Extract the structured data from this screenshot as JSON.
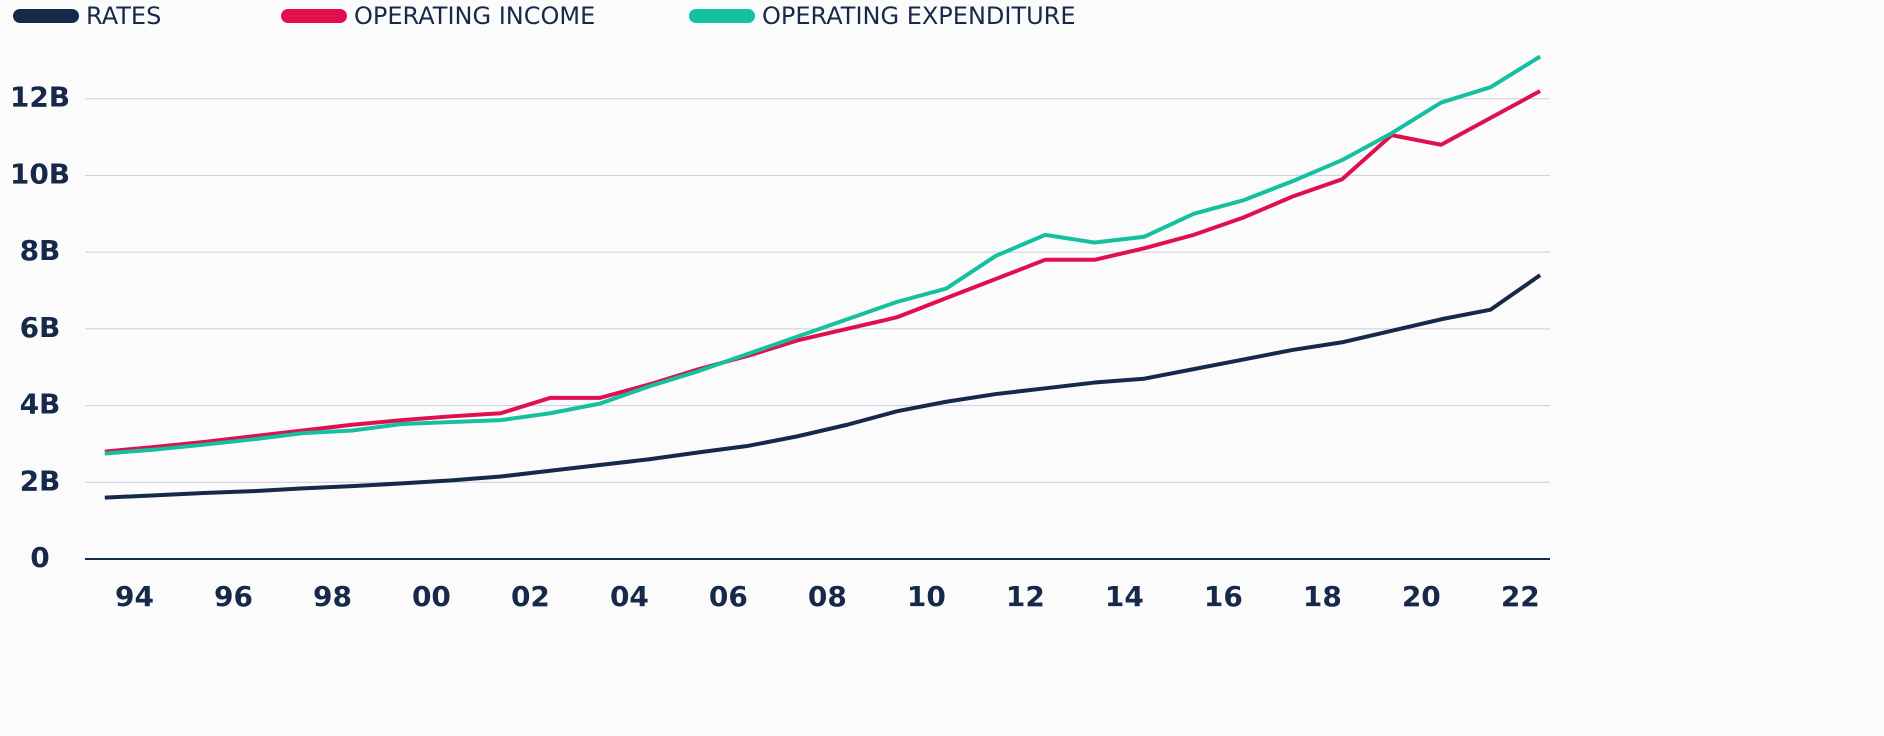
{
  "chart_data": {
    "type": "line",
    "x": [
      1993.4,
      1994.4,
      1995.4,
      1996.4,
      1997.4,
      1998.4,
      1999.4,
      2000.4,
      2001.4,
      2002.4,
      2003.4,
      2004.4,
      2005.4,
      2006.4,
      2007.4,
      2008.4,
      2009.4,
      2010.4,
      2011.4,
      2012.4,
      2013.4,
      2014.4,
      2015.4,
      2016.4,
      2017.4,
      2018.4,
      2019.4,
      2020.4,
      2021.4,
      2022.4
    ],
    "series": [
      {
        "name": "RATES",
        "color": "#17294a",
        "values": [
          1.6,
          1.66,
          1.72,
          1.77,
          1.84,
          1.9,
          1.97,
          2.05,
          2.15,
          2.3,
          2.45,
          2.6,
          2.78,
          2.95,
          3.2,
          3.5,
          3.85,
          4.1,
          4.3,
          4.45,
          4.6,
          4.7,
          4.95,
          5.2,
          5.45,
          5.65,
          5.95,
          6.25,
          6.5,
          7.4
        ]
      },
      {
        "name": "OPERATING INCOME",
        "color": "#e0104f",
        "values": [
          2.8,
          2.92,
          3.05,
          3.2,
          3.35,
          3.5,
          3.62,
          3.72,
          3.8,
          4.2,
          4.2,
          4.55,
          4.95,
          5.3,
          5.7,
          6.0,
          6.3,
          6.8,
          7.3,
          7.8,
          7.8,
          8.1,
          8.45,
          8.9,
          9.45,
          9.9,
          11.05,
          10.8,
          11.5,
          12.2
        ]
      },
      {
        "name": "OPERATING EXPENDITURE",
        "color": "#14c0a0",
        "values": [
          2.75,
          2.85,
          2.98,
          3.12,
          3.28,
          3.35,
          3.52,
          3.57,
          3.62,
          3.8,
          4.05,
          4.5,
          4.9,
          5.35,
          5.8,
          6.25,
          6.7,
          7.05,
          7.9,
          8.45,
          8.25,
          8.4,
          9.0,
          9.35,
          9.85,
          10.4,
          11.1,
          11.9,
          12.3,
          13.1
        ]
      }
    ],
    "xlim": [
      1993,
      2022.6
    ],
    "xticks": [
      {
        "value": 1994,
        "label": "94"
      },
      {
        "value": 1996,
        "label": "96"
      },
      {
        "value": 1998,
        "label": "98"
      },
      {
        "value": 2000,
        "label": "00"
      },
      {
        "value": 2002,
        "label": "02"
      },
      {
        "value": 2004,
        "label": "04"
      },
      {
        "value": 2006,
        "label": "06"
      },
      {
        "value": 2008,
        "label": "08"
      },
      {
        "value": 2010,
        "label": "10"
      },
      {
        "value": 2012,
        "label": "12"
      },
      {
        "value": 2014,
        "label": "14"
      },
      {
        "value": 2016,
        "label": "16"
      },
      {
        "value": 2018,
        "label": "18"
      },
      {
        "value": 2020,
        "label": "20"
      },
      {
        "value": 2022,
        "label": "22"
      }
    ],
    "ylim": [
      0,
      13.4
    ],
    "yticks": [
      0,
      {
        "value": 2,
        "label": "2B"
      },
      {
        "value": 4,
        "label": "4B"
      },
      {
        "value": 6,
        "label": "6B"
      },
      {
        "value": 8,
        "label": "8B"
      },
      {
        "value": 10,
        "label": "10B"
      },
      {
        "value": 12,
        "label": "12B"
      }
    ],
    "grid": true,
    "legend": "top"
  }
}
